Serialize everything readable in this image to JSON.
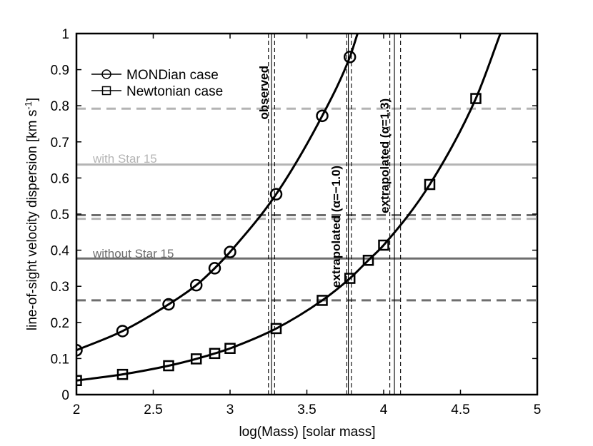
{
  "chart_data": {
    "type": "line",
    "title": "",
    "xlabel": "log(Mass) [solar mass]",
    "ylabel": "line-of-sight velocity dispersion [km s",
    "ylabel_superscript": "-1",
    "ylabel_suffix": "]",
    "xlim": [
      2,
      5
    ],
    "ylim": [
      0,
      1
    ],
    "x_ticks": [
      2,
      2.5,
      3,
      3.5,
      4,
      4.5,
      5
    ],
    "x_tick_labels": [
      "2",
      "2.5",
      "3",
      "3.5",
      "4",
      "4.5",
      "5"
    ],
    "y_ticks": [
      0,
      0.1,
      0.2,
      0.3,
      0.4,
      0.5,
      0.6,
      0.7,
      0.8,
      0.9,
      1
    ],
    "y_tick_labels": [
      "0",
      "0.1",
      "0.2",
      "0.3",
      "0.4",
      "0.5",
      "0.6",
      "0.7",
      "0.8",
      "0.9",
      "1"
    ],
    "grid": false,
    "legend_position": "top-left",
    "series": [
      {
        "name": "MONDian case",
        "marker": "circle",
        "color": "#000000",
        "points": [
          [
            2.0,
            0.123
          ],
          [
            2.3,
            0.176
          ],
          [
            2.6,
            0.25
          ],
          [
            2.78,
            0.303
          ],
          [
            2.9,
            0.35
          ],
          [
            3.0,
            0.395
          ],
          [
            3.3,
            0.555
          ],
          [
            3.6,
            0.772
          ],
          [
            3.78,
            0.935
          ]
        ],
        "curve": [
          [
            2.0,
            0.123
          ],
          [
            2.3,
            0.176
          ],
          [
            2.6,
            0.25
          ],
          [
            2.78,
            0.303
          ],
          [
            2.9,
            0.35
          ],
          [
            3.0,
            0.395
          ],
          [
            3.3,
            0.555
          ],
          [
            3.6,
            0.772
          ],
          [
            3.78,
            0.935
          ],
          [
            3.83,
            1.0
          ]
        ]
      },
      {
        "name": "Newtonian case",
        "marker": "square",
        "color": "#000000",
        "points": [
          [
            2.0,
            0.039
          ],
          [
            2.3,
            0.056
          ],
          [
            2.6,
            0.08
          ],
          [
            2.78,
            0.099
          ],
          [
            2.9,
            0.114
          ],
          [
            3.0,
            0.128
          ],
          [
            3.3,
            0.183
          ],
          [
            3.6,
            0.261
          ],
          [
            3.78,
            0.322
          ],
          [
            3.9,
            0.372
          ],
          [
            4.0,
            0.414
          ],
          [
            4.3,
            0.582
          ],
          [
            4.6,
            0.82
          ]
        ],
        "curve": [
          [
            2.0,
            0.039
          ],
          [
            2.3,
            0.056
          ],
          [
            2.6,
            0.08
          ],
          [
            2.78,
            0.099
          ],
          [
            2.9,
            0.114
          ],
          [
            3.0,
            0.128
          ],
          [
            3.3,
            0.183
          ],
          [
            3.6,
            0.261
          ],
          [
            3.78,
            0.322
          ],
          [
            3.9,
            0.372
          ],
          [
            4.0,
            0.414
          ],
          [
            4.3,
            0.582
          ],
          [
            4.6,
            0.82
          ],
          [
            4.76,
            1.0
          ]
        ]
      }
    ],
    "horizontal_lines": [
      {
        "y": 0.637,
        "style": "solid",
        "color": "#b4b4b4",
        "label": "with Star 15"
      },
      {
        "y": 0.792,
        "style": "dashed",
        "color": "#b4b4b4"
      },
      {
        "y": 0.487,
        "style": "dashed",
        "color": "#b4b4b4"
      },
      {
        "y": 0.377,
        "style": "solid",
        "color": "#6e6e6e",
        "label": "without Star 15"
      },
      {
        "y": 0.497,
        "style": "dashed",
        "color": "#6e6e6e"
      },
      {
        "y": 0.261,
        "style": "dashed",
        "color": "#6e6e6e"
      }
    ],
    "vertical_lines": [
      {
        "x": 3.27,
        "style": "solid",
        "label": "observed"
      },
      {
        "x": 3.25,
        "style": "dashed"
      },
      {
        "x": 3.29,
        "style": "dashed"
      },
      {
        "x": 3.77,
        "style": "solid",
        "label": "extrapolated (α=−1.0)"
      },
      {
        "x": 3.76,
        "style": "dashed"
      },
      {
        "x": 3.79,
        "style": "dashed"
      },
      {
        "x": 4.07,
        "style": "solid",
        "label": "extrapolated (α=1.3)"
      },
      {
        "x": 4.04,
        "style": "dashed"
      },
      {
        "x": 4.11,
        "style": "dashed"
      }
    ]
  }
}
